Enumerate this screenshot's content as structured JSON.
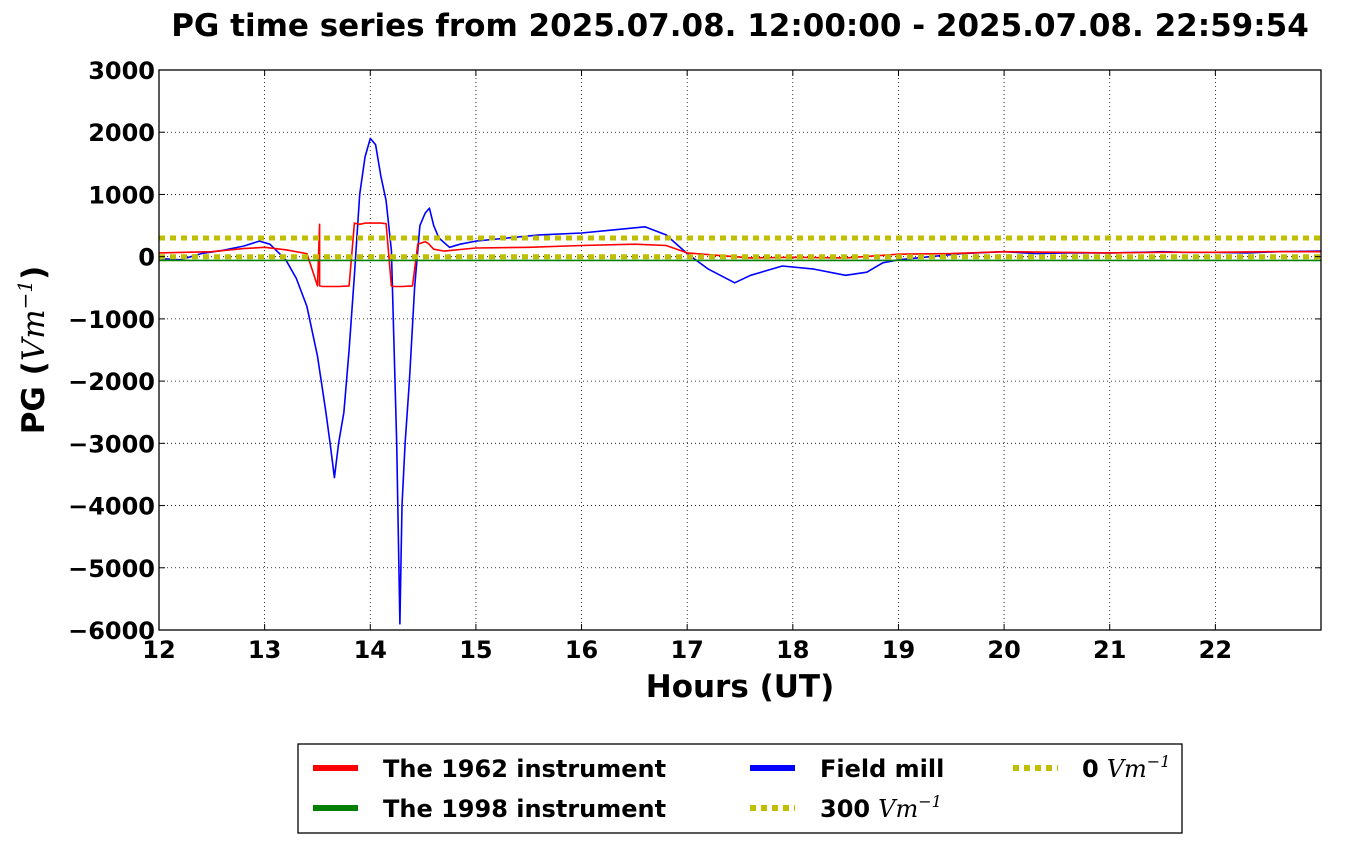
{
  "chart_data": {
    "type": "line",
    "title": "PG time series from 2025.07.08. 12:00:00 - 2025.07.08. 22:59:54",
    "xlabel": "Hours (UT)",
    "ylabel": {
      "prefix": "PG (",
      "math": "Vm",
      "sup": "−1",
      "suffix": ")"
    },
    "xlim": [
      12,
      23
    ],
    "ylim": [
      -6000,
      3000
    ],
    "xticks": [
      12,
      13,
      14,
      15,
      16,
      17,
      18,
      19,
      20,
      21,
      22
    ],
    "xtick_labels": [
      "12",
      "13",
      "14",
      "15",
      "16",
      "17",
      "18",
      "19",
      "20",
      "21",
      "22"
    ],
    "yticks": [
      -6000,
      -5000,
      -4000,
      -3000,
      -2000,
      -1000,
      0,
      1000,
      2000,
      3000
    ],
    "ytick_labels": [
      "−6000",
      "−5000",
      "−4000",
      "−3000",
      "−2000",
      "−1000",
      "0",
      "1000",
      "2000",
      "3000"
    ],
    "grid": true,
    "legend_position": "bottom, below plot",
    "series": [
      {
        "name": "The 1962 instrument",
        "color": "#ff0000",
        "style": "solid",
        "x": [
          12.0,
          12.5,
          12.8,
          13.0,
          13.2,
          13.4,
          13.5,
          13.52,
          13.52,
          13.55,
          13.7,
          13.8,
          13.85,
          13.9,
          13.95,
          14.0,
          14.1,
          14.15,
          14.2,
          14.22,
          14.3,
          14.4,
          14.45,
          14.5,
          14.52,
          14.55,
          14.6,
          14.7,
          15.0,
          15.5,
          16.0,
          16.5,
          16.8,
          17.0,
          17.3,
          17.6,
          18.0,
          18.5,
          19.0,
          19.5,
          20.0,
          20.5,
          21.0,
          21.5,
          22.0,
          22.5,
          23.0
        ],
        "y": [
          60,
          80,
          130,
          150,
          110,
          50,
          -470,
          520,
          -470,
          -480,
          -480,
          -470,
          540,
          520,
          540,
          540,
          540,
          530,
          -470,
          -480,
          -480,
          -470,
          200,
          230,
          240,
          210,
          120,
          90,
          140,
          150,
          180,
          200,
          180,
          60,
          20,
          -20,
          -10,
          -20,
          40,
          50,
          80,
          70,
          60,
          70,
          70,
          80,
          80
        ]
      },
      {
        "name": "The 1998 instrument",
        "color": "#008000",
        "style": "solid",
        "x": [
          12.0,
          23.0
        ],
        "y": [
          -60,
          -60
        ]
      },
      {
        "name": "Field mill",
        "color": "#0000ff",
        "style": "solid",
        "x": [
          12.0,
          12.2,
          12.4,
          12.6,
          12.8,
          12.95,
          13.05,
          13.2,
          13.3,
          13.4,
          13.5,
          13.58,
          13.62,
          13.66,
          13.7,
          13.75,
          13.8,
          13.85,
          13.9,
          13.95,
          14.0,
          14.05,
          14.1,
          14.15,
          14.2,
          14.25,
          14.28,
          14.3,
          14.33,
          14.37,
          14.42,
          14.47,
          14.52,
          14.56,
          14.6,
          14.65,
          14.75,
          14.85,
          15.0,
          15.3,
          15.6,
          16.0,
          16.3,
          16.6,
          16.8,
          17.0,
          17.2,
          17.45,
          17.6,
          17.9,
          18.2,
          18.5,
          18.7,
          18.85,
          19.0,
          19.3,
          19.6,
          20.0,
          20.3,
          20.6,
          21.0,
          21.3,
          21.5,
          21.7,
          22.0,
          22.3,
          22.6,
          23.0
        ],
        "y": [
          -30,
          -50,
          50,
          100,
          170,
          250,
          200,
          -50,
          -350,
          -800,
          -1600,
          -2500,
          -3000,
          -3550,
          -3000,
          -2500,
          -1500,
          -300,
          1000,
          1600,
          1900,
          1800,
          1300,
          900,
          100,
          -3000,
          -5900,
          -4000,
          -3000,
          -2000,
          -500,
          500,
          700,
          780,
          500,
          300,
          150,
          200,
          250,
          300,
          350,
          380,
          430,
          480,
          350,
          50,
          -200,
          -420,
          -300,
          -150,
          -200,
          -300,
          -250,
          -100,
          -50,
          0,
          50,
          80,
          50,
          60,
          60,
          70,
          80,
          70,
          70,
          60,
          80,
          90
        ]
      },
      {
        "name": "300",
        "name_math": "Vm",
        "name_sup": "−1",
        "color": "#bfbf00",
        "style": "dotted",
        "x": [
          12.0,
          23.0
        ],
        "y": [
          300,
          300
        ]
      },
      {
        "name": "0",
        "name_math": "Vm",
        "name_sup": "−1",
        "color": "#bfbf00",
        "style": "dotted",
        "x": [
          12.0,
          23.0
        ],
        "y": [
          0,
          0
        ]
      }
    ]
  }
}
